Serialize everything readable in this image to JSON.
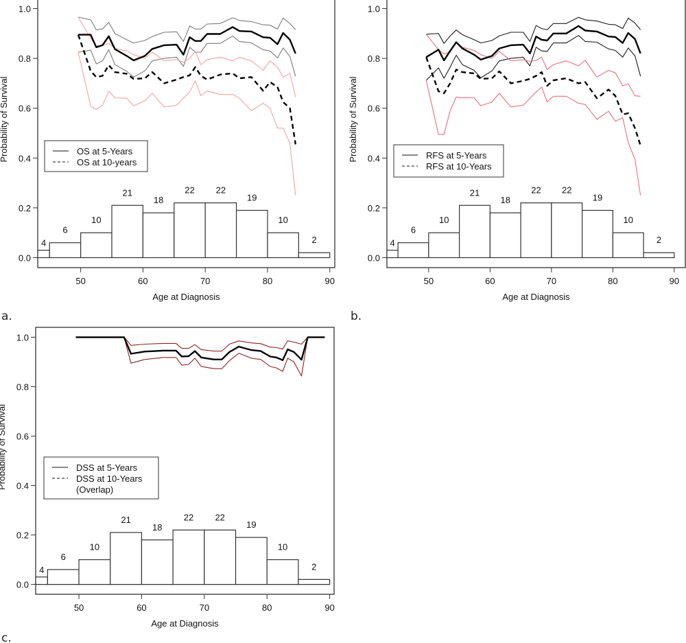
{
  "chart_data": [
    {
      "id": "a",
      "type": "line",
      "panel_label": "a.",
      "xlabel": "Age at Diagnosis",
      "ylabel": "Probability of Survival",
      "xlim": [
        43.1,
        90.8
      ],
      "ylim": [
        -0.04,
        1.04
      ],
      "xticks": [
        50,
        60,
        70,
        80,
        90
      ],
      "yticks": [
        0.0,
        0.2,
        0.4,
        0.6,
        0.8,
        1.0
      ],
      "ytick_labels": [
        "0.0",
        "0.2",
        "0.4",
        "0.6",
        "0.8",
        "1.0"
      ],
      "legend": {
        "position": "middle-left",
        "entries": [
          {
            "label": "OS at 5-Years",
            "style": "solid"
          },
          {
            "label": "OS at 10-years",
            "style": "dashed"
          }
        ]
      },
      "colors": {
        "five_year": "#000000",
        "five_year_ci": "#7a7a7a",
        "ten_year": "#000000",
        "ten_year_ci": "#f4a3a3"
      },
      "x": [
        49.6,
        51.6,
        52.5,
        53.5,
        54.5,
        55.5,
        57.4,
        58.5,
        60.3,
        61.5,
        63.4,
        65.4,
        66.5,
        67.5,
        68.4,
        69.3,
        70.3,
        72.4,
        74.4,
        75.5,
        77.4,
        79.3,
        80.4,
        81.6,
        82.5,
        83.6,
        84.5
      ],
      "series": [
        {
          "name": "OS at 5-Years",
          "role": "estimate",
          "values": [
            0.895,
            0.895,
            0.845,
            0.853,
            0.889,
            0.837,
            0.81,
            0.792,
            0.81,
            0.838,
            0.853,
            0.855,
            0.815,
            0.885,
            0.87,
            0.87,
            0.898,
            0.898,
            0.926,
            0.91,
            0.908,
            0.885,
            0.883,
            0.857,
            0.902,
            0.875,
            0.82
          ]
        },
        {
          "name": "OS at 5-Years upper CI",
          "role": "ci",
          "values": [
            0.966,
            0.955,
            0.915,
            0.918,
            0.945,
            0.9,
            0.875,
            0.862,
            0.872,
            0.888,
            0.905,
            0.907,
            0.868,
            0.93,
            0.918,
            0.918,
            0.938,
            0.94,
            0.963,
            0.952,
            0.948,
            0.935,
            0.933,
            0.918,
            0.962,
            0.94,
            0.915
          ]
        },
        {
          "name": "OS at 5-Years lower CI",
          "role": "ci",
          "values": [
            0.825,
            0.833,
            0.778,
            0.79,
            0.835,
            0.775,
            0.748,
            0.725,
            0.75,
            0.79,
            0.8,
            0.805,
            0.768,
            0.845,
            0.825,
            0.825,
            0.86,
            0.86,
            0.89,
            0.868,
            0.862,
            0.835,
            0.83,
            0.802,
            0.842,
            0.808,
            0.728
          ]
        },
        {
          "name": "OS at 10-years",
          "role": "estimate",
          "values": [
            0.895,
            0.75,
            0.725,
            0.73,
            0.773,
            0.745,
            0.738,
            0.718,
            0.72,
            0.745,
            0.7,
            0.715,
            0.725,
            0.732,
            0.765,
            0.73,
            0.715,
            0.735,
            0.74,
            0.72,
            0.725,
            0.67,
            0.705,
            0.685,
            0.625,
            0.6,
            0.455
          ]
        },
        {
          "name": "OS at 10-years upper CI",
          "role": "ci",
          "values": [
            0.966,
            0.88,
            0.85,
            0.852,
            0.86,
            0.84,
            0.83,
            0.815,
            0.8,
            0.825,
            0.79,
            0.795,
            0.785,
            0.8,
            0.828,
            0.775,
            0.795,
            0.805,
            0.79,
            0.805,
            0.79,
            0.752,
            0.79,
            0.765,
            0.725,
            0.74,
            0.645
          ]
        },
        {
          "name": "OS at 10-years lower CI",
          "role": "ci",
          "values": [
            0.825,
            0.608,
            0.595,
            0.612,
            0.668,
            0.642,
            0.64,
            0.61,
            0.63,
            0.66,
            0.605,
            0.612,
            0.64,
            0.665,
            0.71,
            0.65,
            0.67,
            0.655,
            0.655,
            0.64,
            0.59,
            0.62,
            0.6,
            0.52,
            0.52,
            0.46,
            0.25
          ]
        }
      ],
      "histogram": {
        "bin_edges": [
          45,
          50,
          55,
          60,
          65,
          70,
          75,
          80,
          85,
          90
        ],
        "first_partial_bin": {
          "from": 43.1,
          "to": 45,
          "height": 0.03,
          "count_label": "4"
        },
        "heights": [
          0.06,
          0.1,
          0.21,
          0.18,
          0.22,
          0.22,
          0.19,
          0.1,
          0.02
        ],
        "count_labels": [
          "6",
          "10",
          "21",
          "18",
          "22",
          "22",
          "19",
          "10",
          "2"
        ]
      }
    },
    {
      "id": "b",
      "type": "line",
      "panel_label": "b.",
      "xlabel": "Age at Diagnosis",
      "ylabel": "Probability of Survival",
      "xlim": [
        43.2,
        91.8
      ],
      "ylim": [
        -0.04,
        1.04
      ],
      "xticks": [
        50,
        60,
        70,
        80,
        90
      ],
      "yticks": [
        0.0,
        0.2,
        0.4,
        0.6,
        0.8,
        1.0
      ],
      "ytick_labels": [
        "0.0",
        "0.2",
        "0.4",
        "0.6",
        "0.8",
        "1.0"
      ],
      "legend": {
        "position": "middle-left",
        "entries": [
          {
            "label": "RFS at 5-Years",
            "style": "solid"
          },
          {
            "label": "RFS at 10-Years",
            "style": "dashed"
          }
        ]
      },
      "colors": {
        "five_year": "#000000",
        "five_year_ci": "#1a1a1a",
        "ten_year": "#000000",
        "ten_year_ci": "#e8707a"
      },
      "x": [
        49.6,
        51.6,
        52.5,
        53.5,
        54.5,
        55.5,
        57.4,
        58.5,
        60.3,
        61.5,
        63.4,
        65.4,
        66.5,
        67.5,
        68.4,
        69.3,
        70.3,
        72.4,
        74.4,
        75.5,
        77.4,
        79.3,
        80.4,
        81.6,
        82.5,
        83.6,
        84.5
      ],
      "series": [
        {
          "name": "RFS at 5-Years",
          "role": "estimate",
          "values": [
            0.805,
            0.835,
            0.792,
            0.83,
            0.865,
            0.84,
            0.815,
            0.795,
            0.81,
            0.84,
            0.853,
            0.855,
            0.82,
            0.888,
            0.875,
            0.872,
            0.9,
            0.9,
            0.93,
            0.912,
            0.908,
            0.888,
            0.886,
            0.862,
            0.902,
            0.878,
            0.82
          ]
        },
        {
          "name": "RFS at 5-Years upper CI",
          "role": "ci",
          "values": [
            0.897,
            0.9,
            0.86,
            0.89,
            0.914,
            0.895,
            0.875,
            0.862,
            0.872,
            0.89,
            0.905,
            0.905,
            0.868,
            0.932,
            0.92,
            0.915,
            0.94,
            0.94,
            0.965,
            0.955,
            0.95,
            0.937,
            0.935,
            0.92,
            0.962,
            0.942,
            0.915
          ]
        },
        {
          "name": "RFS at 5-Years lower CI",
          "role": "ci",
          "values": [
            0.712,
            0.762,
            0.72,
            0.765,
            0.813,
            0.775,
            0.752,
            0.722,
            0.75,
            0.79,
            0.8,
            0.805,
            0.77,
            0.845,
            0.83,
            0.828,
            0.862,
            0.862,
            0.892,
            0.868,
            0.865,
            0.838,
            0.832,
            0.805,
            0.842,
            0.81,
            0.728
          ]
        },
        {
          "name": "RFS at 10-Years",
          "role": "estimate",
          "values": [
            0.805,
            0.668,
            0.66,
            0.7,
            0.755,
            0.745,
            0.74,
            0.718,
            0.72,
            0.748,
            0.7,
            0.71,
            0.718,
            0.73,
            0.745,
            0.69,
            0.712,
            0.72,
            0.7,
            0.705,
            0.64,
            0.675,
            0.65,
            0.575,
            0.58,
            0.52,
            0.45
          ]
        },
        {
          "name": "RFS at 10-Years upper CI",
          "role": "ci",
          "values": [
            0.897,
            0.835,
            0.818,
            0.825,
            0.865,
            0.845,
            0.832,
            0.815,
            0.8,
            0.828,
            0.79,
            0.795,
            0.788,
            0.792,
            0.805,
            0.755,
            0.775,
            0.79,
            0.77,
            0.792,
            0.725,
            0.752,
            0.742,
            0.69,
            0.698,
            0.65,
            0.648
          ]
        },
        {
          "name": "RFS at 10-Years lower CI",
          "role": "ci",
          "values": [
            0.712,
            0.495,
            0.495,
            0.59,
            0.645,
            0.642,
            0.642,
            0.61,
            0.625,
            0.66,
            0.605,
            0.612,
            0.64,
            0.665,
            0.685,
            0.625,
            0.648,
            0.648,
            0.62,
            0.615,
            0.555,
            0.588,
            0.548,
            0.562,
            0.462,
            0.395,
            0.25
          ]
        }
      ],
      "histogram": {
        "bin_edges": [
          45,
          50,
          55,
          60,
          65,
          70,
          75,
          80,
          85,
          90
        ],
        "first_partial_bin": {
          "from": 43.2,
          "to": 45,
          "height": 0.03,
          "count_label": "4"
        },
        "heights": [
          0.06,
          0.1,
          0.21,
          0.18,
          0.22,
          0.22,
          0.19,
          0.1,
          0.02
        ],
        "count_labels": [
          "6",
          "10",
          "21",
          "18",
          "22",
          "22",
          "19",
          "10",
          "2"
        ]
      }
    },
    {
      "id": "c",
      "type": "line",
      "panel_label": "c.",
      "xlabel": "Age at Diagnosis",
      "ylabel": "Probability of Survival",
      "xlim": [
        43.1,
        90.7
      ],
      "ylim": [
        -0.04,
        1.04
      ],
      "xticks": [
        50,
        60,
        70,
        80,
        90
      ],
      "yticks": [
        0.0,
        0.2,
        0.4,
        0.6,
        0.8,
        1.0
      ],
      "ytick_labels": [
        "0.0",
        "0.2",
        "0.4",
        "0.6",
        "0.8",
        "1.0"
      ],
      "legend": {
        "position": "middle-left",
        "entries": [
          {
            "label": "DSS at 5-Years",
            "style": "solid"
          },
          {
            "label": "DSS at 10-Years",
            "style": "dashed"
          },
          {
            "label": "(Overlap)",
            "style": "none"
          }
        ]
      },
      "colors": {
        "five_year": "#000000",
        "five_year_ci": "#8b2222"
      },
      "x": [
        49.5,
        57.2,
        58.3,
        60.5,
        63.5,
        65.5,
        66.4,
        67.5,
        68.5,
        69.5,
        71.5,
        72.8,
        74.0,
        75.5,
        77.5,
        79.0,
        80.5,
        81.5,
        82.5,
        83.3,
        84.3,
        85.5,
        86.5,
        89.2
      ],
      "series": [
        {
          "name": "DSS at 5-Years",
          "role": "estimate",
          "values": [
            1.0,
            1.0,
            0.933,
            0.942,
            0.946,
            0.946,
            0.922,
            0.923,
            0.944,
            0.918,
            0.91,
            0.91,
            0.94,
            0.962,
            0.948,
            0.944,
            0.922,
            0.918,
            0.907,
            0.951,
            0.94,
            0.909,
            1.0,
            1.0
          ]
        },
        {
          "name": "DSS upper CI",
          "role": "ci",
          "values": [
            1.0,
            1.0,
            0.967,
            0.972,
            0.975,
            0.975,
            0.955,
            0.955,
            0.97,
            0.95,
            0.944,
            0.944,
            0.972,
            0.985,
            0.977,
            0.974,
            0.96,
            0.958,
            0.952,
            0.986,
            0.98,
            0.972,
            1.0,
            1.0
          ]
        },
        {
          "name": "DSS lower CI",
          "role": "ci",
          "values": [
            1.0,
            1.0,
            0.895,
            0.91,
            0.918,
            0.918,
            0.887,
            0.89,
            0.915,
            0.882,
            0.873,
            0.873,
            0.905,
            0.935,
            0.915,
            0.91,
            0.882,
            0.876,
            0.862,
            0.915,
            0.9,
            0.843,
            1.0,
            1.0
          ]
        }
      ],
      "histogram": {
        "bin_edges": [
          45,
          50,
          55,
          60,
          65,
          70,
          75,
          80,
          85,
          90
        ],
        "first_partial_bin": {
          "from": 43.1,
          "to": 45,
          "height": 0.03,
          "count_label": "4"
        },
        "heights": [
          0.06,
          0.1,
          0.21,
          0.18,
          0.22,
          0.22,
          0.19,
          0.1,
          0.02
        ],
        "count_labels": [
          "6",
          "10",
          "21",
          "18",
          "22",
          "22",
          "19",
          "10",
          "2"
        ]
      }
    }
  ]
}
